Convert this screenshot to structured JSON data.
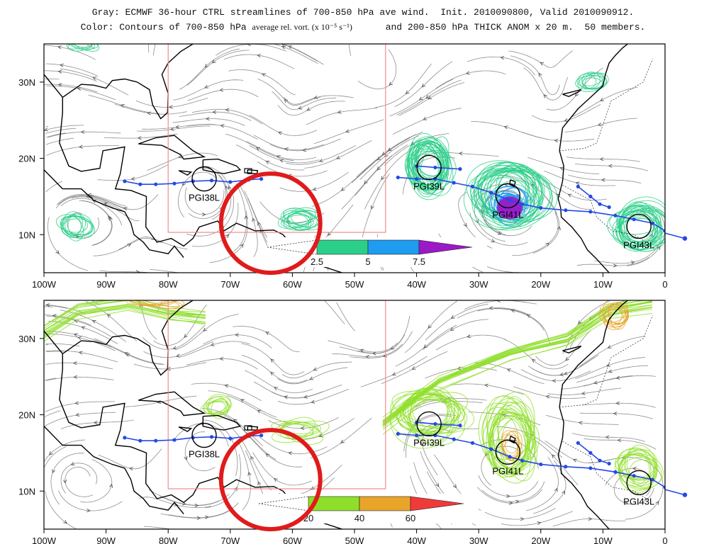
{
  "title": {
    "line1": "Gray: ECMWF 36-hour CTRL streamlines of 700-850 hPa ave wind.  Init. 2010090800, Valid 2010090912.",
    "line2_a": "Color: Contours of 700-850 hPa ",
    "line2_sub": "average rel. vort. (x 10⁻⁵ s⁻¹)",
    "line2_b": "      and 200-850 hPa THICK ANOM x 20 m.  50 members."
  },
  "x_ticks": [
    "100W",
    "90W",
    "80W",
    "70W",
    "60W",
    "50W",
    "40W",
    "30W",
    "20W",
    "10W",
    "0"
  ],
  "y_ticks": [
    "30N",
    "20N",
    "10N"
  ],
  "storms": [
    "PGI38L",
    "PGI39L",
    "PGI41L",
    "PGI43L"
  ],
  "top_colorbar": {
    "labels": [
      "2.5",
      "5",
      "7.5"
    ],
    "colors": [
      "#2ccf8a",
      "#1e9cf0",
      "#9b19c7"
    ]
  },
  "bottom_colorbar": {
    "labels": [
      "20",
      "40",
      "60"
    ],
    "colors": [
      "#8fdf2a",
      "#e8a52a",
      "#f03a3a"
    ]
  },
  "colors": {
    "streamline": "#7a7a7a",
    "coast": "#000000",
    "track": "#2449e8",
    "box": "#f08a8a",
    "circle": "#e01b1b"
  }
}
